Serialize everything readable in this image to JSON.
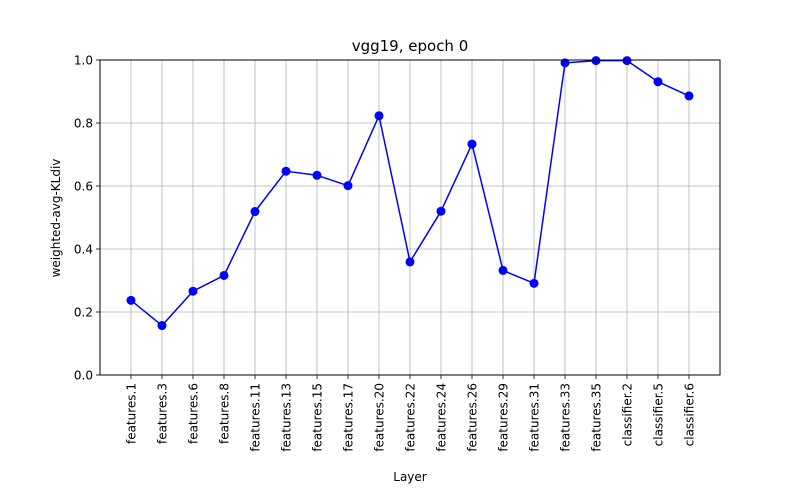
{
  "chart_data": {
    "type": "line",
    "title": "vgg19, epoch 0",
    "xlabel": "Layer",
    "ylabel": "weighted-avg-KLdiv",
    "categories": [
      "features.1",
      "features.3",
      "features.6",
      "features.8",
      "features.11",
      "features.13",
      "features.15",
      "features.17",
      "features.20",
      "features.22",
      "features.24",
      "features.26",
      "features.29",
      "features.31",
      "features.33",
      "features.35",
      "classifier.2",
      "classifier.5",
      "classifier.6"
    ],
    "series": [
      {
        "values": [
          0.237,
          0.157,
          0.266,
          0.316,
          0.519,
          0.647,
          0.634,
          0.601,
          0.823,
          0.359,
          0.52,
          0.733,
          0.332,
          0.291,
          0.991,
          0.998,
          0.998,
          0.931,
          0.886
        ],
        "color": "#0000ff",
        "marker": "circle"
      }
    ],
    "ylim": [
      0.0,
      1.0
    ],
    "yticks": [
      "0.0",
      "0.2",
      "0.4",
      "0.6",
      "0.8",
      "1.0"
    ],
    "grid": true,
    "legend": "none"
  }
}
